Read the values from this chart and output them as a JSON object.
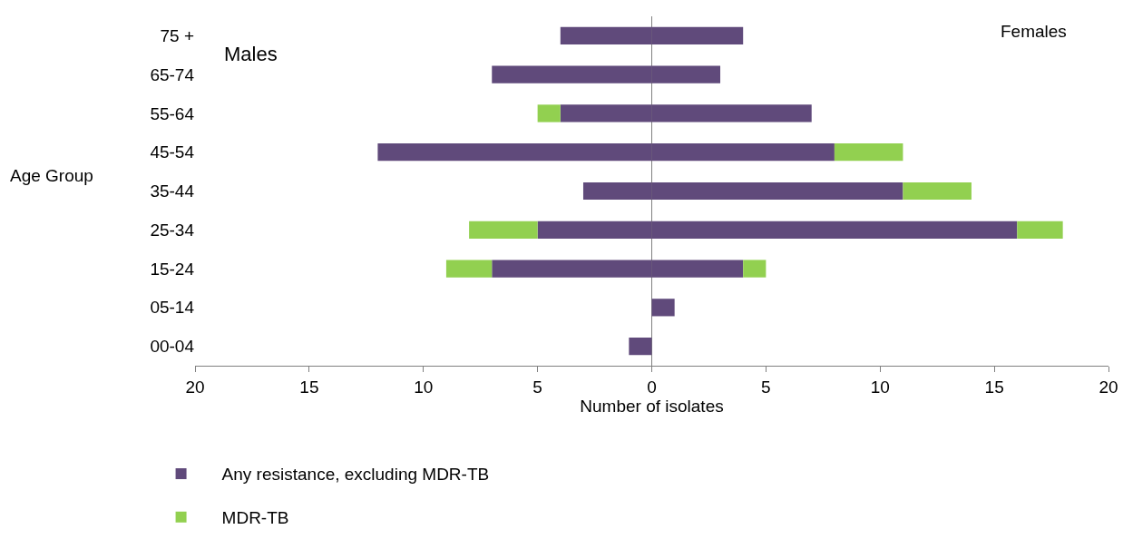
{
  "chart_data": {
    "type": "bar",
    "orientation": "horizontal",
    "stacked": true,
    "categories": [
      "75 +",
      "65-74",
      "55-64",
      "45-54",
      "35-44",
      "25-34",
      "15-24",
      "05-14",
      "00-04"
    ],
    "series": [
      {
        "name": "Any resistance, excluding MDR-TB",
        "color": "#604a7b",
        "values": [
          -4,
          -7,
          -4,
          -12,
          -3,
          -5,
          -7,
          0,
          -1
        ]
      },
      {
        "name": "MDR-TB",
        "color": "#92d050",
        "values": [
          0,
          0,
          -1,
          0,
          0,
          -3,
          -2,
          0,
          0
        ]
      },
      {
        "color": "#604a7b",
        "values": [
          4,
          3,
          7,
          8,
          11,
          16,
          4,
          1,
          0
        ]
      },
      {
        "color": "#92d050",
        "values": [
          0,
          0,
          0,
          3,
          3,
          2,
          1,
          0,
          0
        ]
      }
    ],
    "xlim": [
      -20,
      20
    ],
    "xticks": [
      {
        "value": -20,
        "label": "20"
      },
      {
        "value": -15,
        "label": "15"
      },
      {
        "value": -10,
        "label": "10"
      },
      {
        "value": -5,
        "label": "5"
      },
      0,
      5,
      10,
      15,
      20
    ],
    "xlabel": "Number of isolates",
    "ylabel": "Age Group",
    "annotations": [
      "Males",
      "Females"
    ],
    "legend": "bottom"
  }
}
